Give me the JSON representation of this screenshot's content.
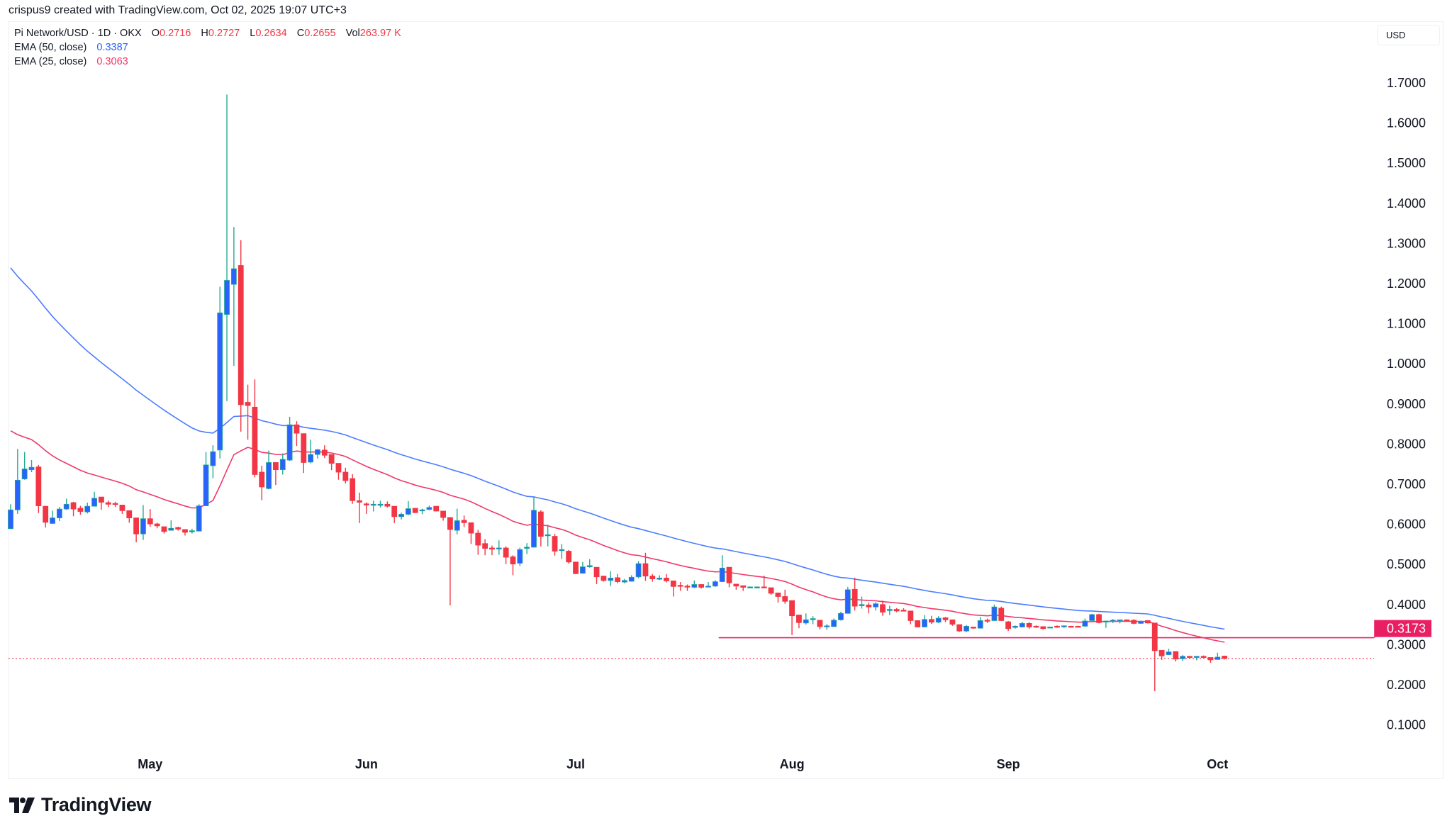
{
  "credit": "crispus9 created with TradingView.com, Oct 02, 2025 19:07 UTC+3",
  "legend": {
    "symbol": "Pi Network/USD · 1D · OKX",
    "o_label": "O",
    "o": "0.2716",
    "h_label": "H",
    "h": "0.2727",
    "l_label": "L",
    "l": "0.2634",
    "c_label": "C",
    "c": "0.2655",
    "vol_label": "Vol",
    "vol": "263.97 K",
    "ema50_label": "EMA (50, close)",
    "ema50": "0.3387",
    "ema25_label": "EMA (25, close)",
    "ema25": "0.3063"
  },
  "currency_button": "USD",
  "brand": "TradingView",
  "colors": {
    "up_body": "#2962ff",
    "up_wick": "#22ab94",
    "down": "#f23645",
    "ema50": "#4c7dff",
    "ema25": "#f0386b",
    "level": "#e91e63"
  },
  "chart_data": {
    "type": "candlestick",
    "title": "Pi Network/USD · 1D · OKX",
    "start_date": "2025-04-11",
    "ylim": [
      0.0,
      1.8
    ],
    "y_ticks": [
      "1.7000",
      "1.6000",
      "1.5000",
      "1.4000",
      "1.3000",
      "1.2000",
      "1.1000",
      "1.0000",
      "0.9000",
      "0.8000",
      "0.7000",
      "0.6000",
      "0.5000",
      "0.4000",
      "0.3000",
      "0.2000",
      "0.1000"
    ],
    "x_ticks": [
      {
        "label": "May",
        "date": "2025-05-01"
      },
      {
        "label": "Jun",
        "date": "2025-06-01"
      },
      {
        "label": "Jul",
        "date": "2025-07-01"
      },
      {
        "label": "Aug",
        "date": "2025-08-01"
      },
      {
        "label": "Sep",
        "date": "2025-09-01"
      },
      {
        "label": "Oct",
        "date": "2025-10-01"
      }
    ],
    "ema50_seed": 1.239,
    "ema25_seed": 0.833,
    "horizontal_level": {
      "value": 0.3173,
      "label": "0.3173",
      "from_date": "2025-07-22"
    },
    "last_price": 0.2655,
    "ohlc": [
      [
        0.589,
        0.65,
        0.589,
        0.636
      ],
      [
        0.636,
        0.788,
        0.626,
        0.71
      ],
      [
        0.713,
        0.78,
        0.711,
        0.738
      ],
      [
        0.736,
        0.76,
        0.73,
        0.742
      ],
      [
        0.743,
        0.748,
        0.628,
        0.646
      ],
      [
        0.645,
        0.645,
        0.592,
        0.605
      ],
      [
        0.602,
        0.634,
        0.602,
        0.616
      ],
      [
        0.616,
        0.643,
        0.608,
        0.638
      ],
      [
        0.638,
        0.664,
        0.636,
        0.65
      ],
      [
        0.654,
        0.656,
        0.62,
        0.638
      ],
      [
        0.64,
        0.646,
        0.624,
        0.632
      ],
      [
        0.631,
        0.654,
        0.627,
        0.645
      ],
      [
        0.645,
        0.681,
        0.645,
        0.665
      ],
      [
        0.668,
        0.668,
        0.636,
        0.655
      ],
      [
        0.654,
        0.659,
        0.643,
        0.65
      ],
      [
        0.652,
        0.656,
        0.643,
        0.65
      ],
      [
        0.648,
        0.648,
        0.626,
        0.634
      ],
      [
        0.634,
        0.634,
        0.604,
        0.616
      ],
      [
        0.616,
        0.616,
        0.555,
        0.576
      ],
      [
        0.576,
        0.648,
        0.561,
        0.614
      ],
      [
        0.614,
        0.638,
        0.594,
        0.601
      ],
      [
        0.601,
        0.604,
        0.59,
        0.596
      ],
      [
        0.594,
        0.594,
        0.577,
        0.582
      ],
      [
        0.585,
        0.61,
        0.585,
        0.59
      ],
      [
        0.592,
        0.594,
        0.584,
        0.588
      ],
      [
        0.587,
        0.587,
        0.572,
        0.58
      ],
      [
        0.582,
        0.589,
        0.577,
        0.584
      ],
      [
        0.583,
        0.65,
        0.583,
        0.646
      ],
      [
        0.646,
        0.78,
        0.646,
        0.748
      ],
      [
        0.746,
        0.797,
        0.715,
        0.781
      ],
      [
        0.785,
        1.192,
        0.764,
        1.127
      ],
      [
        1.123,
        1.671,
        0.907,
        1.208
      ],
      [
        1.198,
        1.341,
        0.995,
        1.237
      ],
      [
        1.245,
        1.308,
        0.831,
        0.898
      ],
      [
        0.904,
        0.948,
        0.811,
        0.896
      ],
      [
        0.892,
        0.961,
        0.717,
        0.724
      ],
      [
        0.73,
        0.746,
        0.66,
        0.693
      ],
      [
        0.689,
        0.784,
        0.687,
        0.754
      ],
      [
        0.754,
        0.754,
        0.698,
        0.736
      ],
      [
        0.736,
        0.777,
        0.724,
        0.762
      ],
      [
        0.76,
        0.868,
        0.758,
        0.848
      ],
      [
        0.848,
        0.857,
        0.795,
        0.827
      ],
      [
        0.826,
        0.826,
        0.728,
        0.754
      ],
      [
        0.755,
        0.811,
        0.752,
        0.774
      ],
      [
        0.774,
        0.788,
        0.764,
        0.786
      ],
      [
        0.785,
        0.797,
        0.765,
        0.772
      ],
      [
        0.774,
        0.774,
        0.735,
        0.752
      ],
      [
        0.752,
        0.752,
        0.711,
        0.73
      ],
      [
        0.73,
        0.741,
        0.702,
        0.709
      ],
      [
        0.714,
        0.725,
        0.651,
        0.659
      ],
      [
        0.659,
        0.679,
        0.603,
        0.655
      ],
      [
        0.651,
        0.655,
        0.626,
        0.648
      ],
      [
        0.648,
        0.659,
        0.632,
        0.65
      ],
      [
        0.648,
        0.659,
        0.642,
        0.65
      ],
      [
        0.65,
        0.657,
        0.642,
        0.645
      ],
      [
        0.645,
        0.645,
        0.603,
        0.619
      ],
      [
        0.619,
        0.629,
        0.612,
        0.625
      ],
      [
        0.625,
        0.658,
        0.622,
        0.639
      ],
      [
        0.64,
        0.64,
        0.628,
        0.629
      ],
      [
        0.634,
        0.639,
        0.625,
        0.636
      ],
      [
        0.637,
        0.647,
        0.635,
        0.642
      ],
      [
        0.645,
        0.645,
        0.632,
        0.633
      ],
      [
        0.633,
        0.633,
        0.609,
        0.617
      ],
      [
        0.617,
        0.617,
        0.398,
        0.587
      ],
      [
        0.585,
        0.639,
        0.575,
        0.609
      ],
      [
        0.61,
        0.622,
        0.593,
        0.604
      ],
      [
        0.604,
        0.604,
        0.551,
        0.578
      ],
      [
        0.578,
        0.586,
        0.524,
        0.548
      ],
      [
        0.552,
        0.563,
        0.523,
        0.54
      ],
      [
        0.541,
        0.547,
        0.523,
        0.538
      ],
      [
        0.54,
        0.56,
        0.524,
        0.541
      ],
      [
        0.541,
        0.545,
        0.501,
        0.518
      ],
      [
        0.519,
        0.523,
        0.473,
        0.501
      ],
      [
        0.503,
        0.542,
        0.496,
        0.537
      ],
      [
        0.54,
        0.553,
        0.526,
        0.543
      ],
      [
        0.543,
        0.668,
        0.542,
        0.635
      ],
      [
        0.631,
        0.635,
        0.545,
        0.57
      ],
      [
        0.572,
        0.599,
        0.545,
        0.574
      ],
      [
        0.57,
        0.576,
        0.522,
        0.533
      ],
      [
        0.535,
        0.551,
        0.514,
        0.537
      ],
      [
        0.533,
        0.536,
        0.502,
        0.506
      ],
      [
        0.506,
        0.506,
        0.476,
        0.477
      ],
      [
        0.478,
        0.506,
        0.477,
        0.494
      ],
      [
        0.494,
        0.513,
        0.492,
        0.497
      ],
      [
        0.493,
        0.493,
        0.451,
        0.469
      ],
      [
        0.471,
        0.471,
        0.457,
        0.46
      ],
      [
        0.46,
        0.483,
        0.446,
        0.466
      ],
      [
        0.467,
        0.476,
        0.453,
        0.457
      ],
      [
        0.456,
        0.464,
        0.453,
        0.46
      ],
      [
        0.458,
        0.473,
        0.457,
        0.468
      ],
      [
        0.469,
        0.508,
        0.466,
        0.502
      ],
      [
        0.502,
        0.529,
        0.459,
        0.471
      ],
      [
        0.471,
        0.476,
        0.457,
        0.464
      ],
      [
        0.463,
        0.473,
        0.461,
        0.466
      ],
      [
        0.466,
        0.476,
        0.455,
        0.459
      ],
      [
        0.459,
        0.459,
        0.42,
        0.445
      ],
      [
        0.448,
        0.456,
        0.434,
        0.447
      ],
      [
        0.446,
        0.45,
        0.434,
        0.445
      ],
      [
        0.443,
        0.46,
        0.441,
        0.45
      ],
      [
        0.45,
        0.45,
        0.44,
        0.443
      ],
      [
        0.444,
        0.456,
        0.444,
        0.446
      ],
      [
        0.446,
        0.461,
        0.444,
        0.457
      ],
      [
        0.457,
        0.523,
        0.456,
        0.491
      ],
      [
        0.493,
        0.493,
        0.443,
        0.454
      ],
      [
        0.451,
        0.451,
        0.437,
        0.446
      ],
      [
        0.447,
        0.447,
        0.434,
        0.443
      ],
      [
        0.443,
        0.445,
        0.441,
        0.444
      ],
      [
        0.443,
        0.445,
        0.441,
        0.444
      ],
      [
        0.444,
        0.472,
        0.441,
        0.442
      ],
      [
        0.442,
        0.442,
        0.424,
        0.428
      ],
      [
        0.429,
        0.429,
        0.405,
        0.42
      ],
      [
        0.42,
        0.437,
        0.402,
        0.408
      ],
      [
        0.41,
        0.41,
        0.324,
        0.372
      ],
      [
        0.374,
        0.374,
        0.341,
        0.355
      ],
      [
        0.354,
        0.378,
        0.35,
        0.362
      ],
      [
        0.363,
        0.371,
        0.351,
        0.365
      ],
      [
        0.361,
        0.361,
        0.338,
        0.345
      ],
      [
        0.345,
        0.351,
        0.337,
        0.347
      ],
      [
        0.345,
        0.365,
        0.345,
        0.361
      ],
      [
        0.362,
        0.382,
        0.36,
        0.378
      ],
      [
        0.378,
        0.444,
        0.378,
        0.437
      ],
      [
        0.438,
        0.467,
        0.385,
        0.396
      ],
      [
        0.397,
        0.42,
        0.39,
        0.4
      ],
      [
        0.399,
        0.405,
        0.378,
        0.394
      ],
      [
        0.394,
        0.406,
        0.385,
        0.402
      ],
      [
        0.4,
        0.41,
        0.372,
        0.381
      ],
      [
        0.385,
        0.397,
        0.374,
        0.388
      ],
      [
        0.388,
        0.391,
        0.381,
        0.384
      ],
      [
        0.386,
        0.391,
        0.383,
        0.385
      ],
      [
        0.384,
        0.384,
        0.351,
        0.36
      ],
      [
        0.36,
        0.36,
        0.343,
        0.344
      ],
      [
        0.344,
        0.374,
        0.344,
        0.363
      ],
      [
        0.363,
        0.372,
        0.352,
        0.356
      ],
      [
        0.356,
        0.371,
        0.354,
        0.366
      ],
      [
        0.367,
        0.369,
        0.356,
        0.362
      ],
      [
        0.362,
        0.362,
        0.347,
        0.351
      ],
      [
        0.35,
        0.35,
        0.332,
        0.334
      ],
      [
        0.334,
        0.349,
        0.331,
        0.346
      ],
      [
        0.344,
        0.344,
        0.34,
        0.341
      ],
      [
        0.341,
        0.369,
        0.341,
        0.36
      ],
      [
        0.361,
        0.365,
        0.354,
        0.359
      ],
      [
        0.36,
        0.4,
        0.359,
        0.394
      ],
      [
        0.391,
        0.395,
        0.359,
        0.36
      ],
      [
        0.357,
        0.359,
        0.334,
        0.34
      ],
      [
        0.343,
        0.348,
        0.34,
        0.346
      ],
      [
        0.344,
        0.357,
        0.343,
        0.353
      ],
      [
        0.353,
        0.356,
        0.34,
        0.344
      ],
      [
        0.346,
        0.348,
        0.342,
        0.345
      ],
      [
        0.345,
        0.345,
        0.338,
        0.34
      ],
      [
        0.342,
        0.344,
        0.342,
        0.344
      ],
      [
        0.346,
        0.348,
        0.342,
        0.344
      ],
      [
        0.345,
        0.348,
        0.342,
        0.347
      ],
      [
        0.346,
        0.347,
        0.343,
        0.344
      ],
      [
        0.346,
        0.347,
        0.343,
        0.344
      ],
      [
        0.346,
        0.365,
        0.345,
        0.359
      ],
      [
        0.36,
        0.377,
        0.36,
        0.375
      ],
      [
        0.375,
        0.377,
        0.353,
        0.355
      ],
      [
        0.358,
        0.359,
        0.342,
        0.359
      ],
      [
        0.359,
        0.364,
        0.354,
        0.361
      ],
      [
        0.36,
        0.362,
        0.353,
        0.362
      ],
      [
        0.362,
        0.363,
        0.359,
        0.36
      ],
      [
        0.361,
        0.363,
        0.351,
        0.353
      ],
      [
        0.353,
        0.36,
        0.352,
        0.358
      ],
      [
        0.36,
        0.361,
        0.353,
        0.354
      ],
      [
        0.354,
        0.354,
        0.184,
        0.285
      ],
      [
        0.286,
        0.286,
        0.262,
        0.272
      ],
      [
        0.275,
        0.29,
        0.275,
        0.282
      ],
      [
        0.283,
        0.283,
        0.258,
        0.264
      ],
      [
        0.265,
        0.274,
        0.259,
        0.271
      ],
      [
        0.271,
        0.271,
        0.265,
        0.268
      ],
      [
        0.268,
        0.271,
        0.261,
        0.271
      ],
      [
        0.271,
        0.273,
        0.267,
        0.268
      ],
      [
        0.268,
        0.268,
        0.255,
        0.262
      ],
      [
        0.263,
        0.28,
        0.263,
        0.269
      ],
      [
        0.2716,
        0.2727,
        0.2634,
        0.2655
      ]
    ]
  }
}
